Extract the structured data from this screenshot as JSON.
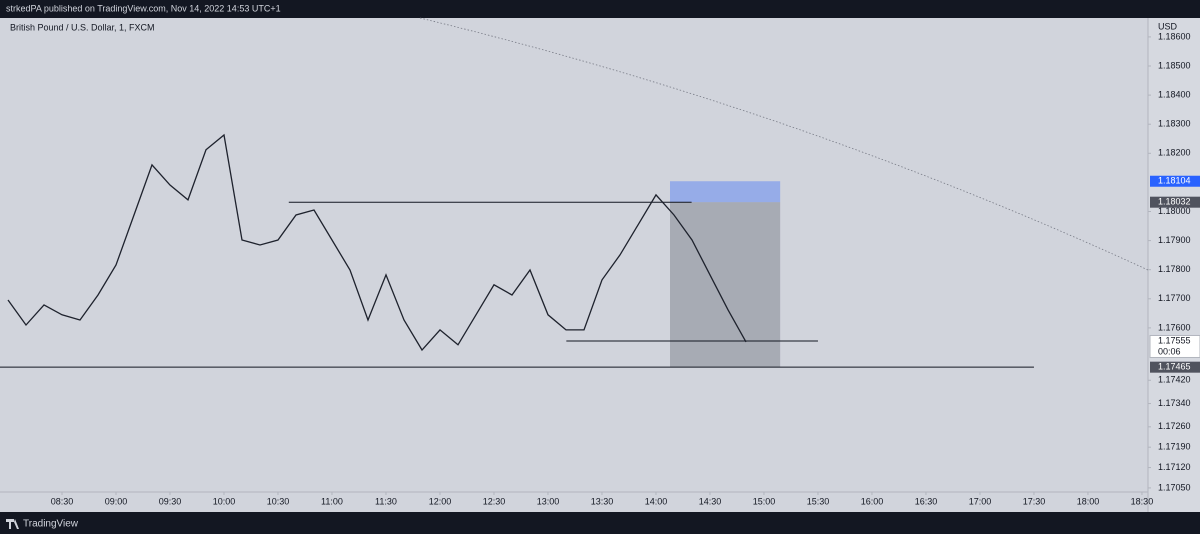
{
  "header": {
    "byline": "strkedPA published on TradingView.com, Nov 14, 2022 14:53 UTC+1"
  },
  "footer": {
    "brand": "TradingView"
  },
  "chart_data": {
    "type": "line",
    "title": "British Pound / U.S. Dollar, 1, FXCM",
    "currency": "USD",
    "color": "#1e222d",
    "x": [
      8,
      8.1667,
      8.3333,
      8.5,
      8.6667,
      8.8333,
      9,
      9.1667,
      9.3333,
      9.5,
      9.6667,
      9.8333,
      10,
      10.1667,
      10.3333,
      10.5,
      10.6667,
      10.8333,
      11,
      11.1667,
      11.3333,
      11.5,
      11.6667,
      11.8333,
      12,
      12.1667,
      12.3333,
      12.5,
      12.6667,
      12.8333,
      13,
      13.1667,
      13.3333,
      13.5,
      13.6667,
      13.8333,
      14,
      14.1667,
      14.3333,
      14.5,
      14.6667,
      14.8333
    ],
    "values": [
      1.17696,
      1.1761,
      1.17679,
      1.17645,
      1.17627,
      1.17713,
      1.17816,
      1.17988,
      1.1816,
      1.18091,
      1.1804,
      1.18212,
      1.18263,
      1.17902,
      1.17885,
      1.17902,
      1.17988,
      1.18005,
      1.17902,
      1.17799,
      1.17627,
      1.17782,
      1.17627,
      1.17524,
      1.17593,
      1.17542,
      1.17645,
      1.17748,
      1.17713,
      1.17799,
      1.17645,
      1.17593,
      1.17593,
      1.17765,
      1.17851,
      1.17954,
      1.18057,
      1.17988,
      1.17902,
      1.17782,
      1.17662,
      1.17552
    ],
    "xlim": [
      7.926,
      18.556
    ],
    "ylim": [
      1.17036,
      1.18665
    ],
    "xticks": [
      {
        "value": 8.5,
        "label": "08:30"
      },
      {
        "value": 9,
        "label": "09:00"
      },
      {
        "value": 9.5,
        "label": "09:30"
      },
      {
        "value": 10,
        "label": "10:00"
      },
      {
        "value": 10.5,
        "label": "10:30"
      },
      {
        "value": 11,
        "label": "11:00"
      },
      {
        "value": 11.5,
        "label": "11:30"
      },
      {
        "value": 12,
        "label": "12:00"
      },
      {
        "value": 12.5,
        "label": "12:30"
      },
      {
        "value": 13,
        "label": "13:00"
      },
      {
        "value": 13.5,
        "label": "13:30"
      },
      {
        "value": 14,
        "label": "14:00"
      },
      {
        "value": 14.5,
        "label": "14:30"
      },
      {
        "value": 15,
        "label": "15:00"
      },
      {
        "value": 15.5,
        "label": "15:30"
      },
      {
        "value": 16,
        "label": "16:00"
      },
      {
        "value": 16.5,
        "label": "16:30"
      },
      {
        "value": 17,
        "label": "17:00"
      },
      {
        "value": 17.5,
        "label": "17:30"
      },
      {
        "value": 18,
        "label": "18:00"
      },
      {
        "value": 18.5,
        "label": "18:30"
      }
    ],
    "yticks": [
      {
        "value": 1.186,
        "label": "1.18600"
      },
      {
        "value": 1.185,
        "label": "1.18500"
      },
      {
        "value": 1.184,
        "label": "1.18400"
      },
      {
        "value": 1.183,
        "label": "1.18300"
      },
      {
        "value": 1.182,
        "label": "1.18200"
      },
      {
        "value": 1.18,
        "label": "1.18000"
      },
      {
        "value": 1.179,
        "label": "1.17900"
      },
      {
        "value": 1.178,
        "label": "1.17800"
      },
      {
        "value": 1.177,
        "label": "1.17700"
      },
      {
        "value": 1.176,
        "label": "1.17600"
      },
      {
        "value": 1.1742,
        "label": "1.17420"
      },
      {
        "value": 1.1734,
        "label": "1.17340"
      },
      {
        "value": 1.1726,
        "label": "1.17260"
      },
      {
        "value": 1.1719,
        "label": "1.17190"
      },
      {
        "value": 1.1712,
        "label": "1.17120"
      },
      {
        "value": 1.1705,
        "label": "1.17050"
      }
    ],
    "levels": [
      {
        "value": 1.18032,
        "from": 10.6,
        "to": 14.33
      },
      {
        "value": 1.17555,
        "from": 13.17,
        "to": 15.5
      },
      {
        "value": 1.17465,
        "from": 7.926,
        "to": 17.5
      }
    ],
    "position": {
      "entry": 1.18032,
      "stop": 1.18104,
      "target": 1.17465,
      "start": 14.13,
      "end": 15.15
    },
    "price_tags": [
      {
        "value": 1.18104,
        "color": "#2962ff"
      },
      {
        "value": 1.18032,
        "color": "#50535e"
      },
      {
        "value": 1.17555,
        "color": "#ffffff",
        "countdown": "00:06"
      },
      {
        "value": 1.17465,
        "color": "#50535e"
      }
    ]
  }
}
